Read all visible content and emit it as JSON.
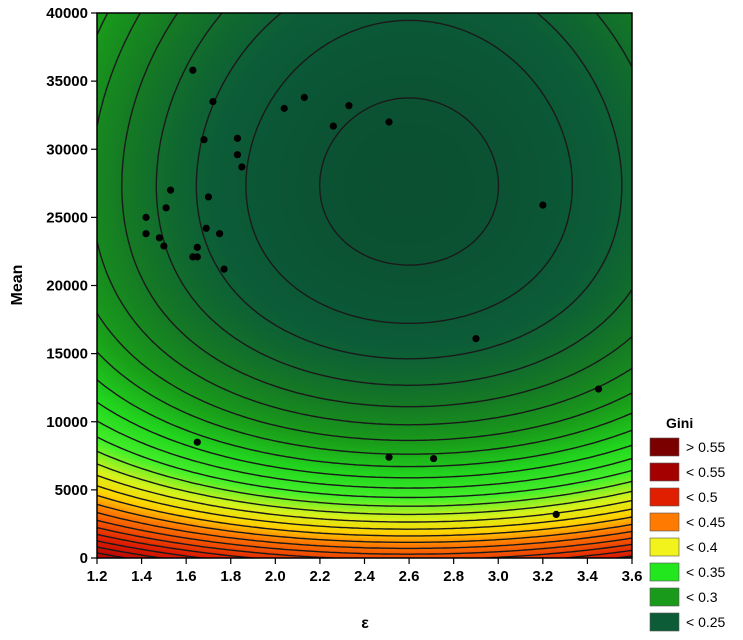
{
  "chart_data": {
    "type": "contour",
    "xlabel": "ε",
    "ylabel": "Mean",
    "xlim": [
      1.2,
      3.6
    ],
    "ylim": [
      0,
      40000
    ],
    "x_ticks": [
      "1.2",
      "1.4",
      "1.6",
      "1.8",
      "2.0",
      "2.2",
      "2.4",
      "2.6",
      "2.8",
      "3.0",
      "3.2",
      "3.4",
      "3.6"
    ],
    "y_ticks": [
      "0",
      "5000",
      "10000",
      "15000",
      "20000",
      "25000",
      "30000",
      "35000",
      "40000"
    ],
    "legend": {
      "title": "Gini",
      "placement": "right-bottom",
      "entries": [
        {
          "label": "> 0.55",
          "color": "#7a0000"
        },
        {
          "label": "< 0.55",
          "color": "#a50000"
        },
        {
          "label": "< 0.5",
          "color": "#e01e00"
        },
        {
          "label": "< 0.45",
          "color": "#ff7a00"
        },
        {
          "label": "< 0.4",
          "color": "#f2f21c"
        },
        {
          "label": "< 0.35",
          "color": "#22e61e"
        },
        {
          "label": "< 0.3",
          "color": "#1a9a1a"
        },
        {
          "label": "< 0.25",
          "color": "#0c5c38"
        }
      ]
    },
    "points": [
      {
        "x": 1.63,
        "y": 35800
      },
      {
        "x": 1.72,
        "y": 33500
      },
      {
        "x": 2.04,
        "y": 33000
      },
      {
        "x": 2.13,
        "y": 33800
      },
      {
        "x": 2.33,
        "y": 33200
      },
      {
        "x": 2.26,
        "y": 31700
      },
      {
        "x": 2.51,
        "y": 32000
      },
      {
        "x": 1.68,
        "y": 30700
      },
      {
        "x": 1.83,
        "y": 30800
      },
      {
        "x": 1.83,
        "y": 29600
      },
      {
        "x": 1.85,
        "y": 28700
      },
      {
        "x": 1.53,
        "y": 27000
      },
      {
        "x": 1.7,
        "y": 26500
      },
      {
        "x": 1.51,
        "y": 25700
      },
      {
        "x": 1.42,
        "y": 25000
      },
      {
        "x": 1.42,
        "y": 23800
      },
      {
        "x": 1.48,
        "y": 23500
      },
      {
        "x": 1.5,
        "y": 22900
      },
      {
        "x": 1.69,
        "y": 24200
      },
      {
        "x": 1.75,
        "y": 23800
      },
      {
        "x": 1.65,
        "y": 22800
      },
      {
        "x": 1.63,
        "y": 22100
      },
      {
        "x": 1.65,
        "y": 22100
      },
      {
        "x": 1.77,
        "y": 21200
      },
      {
        "x": 3.2,
        "y": 25900
      },
      {
        "x": 2.9,
        "y": 16100
      },
      {
        "x": 3.45,
        "y": 12400
      },
      {
        "x": 1.65,
        "y": 8500
      },
      {
        "x": 2.51,
        "y": 7400
      },
      {
        "x": 2.71,
        "y": 7300
      },
      {
        "x": 3.26,
        "y": 3200
      }
    ]
  }
}
